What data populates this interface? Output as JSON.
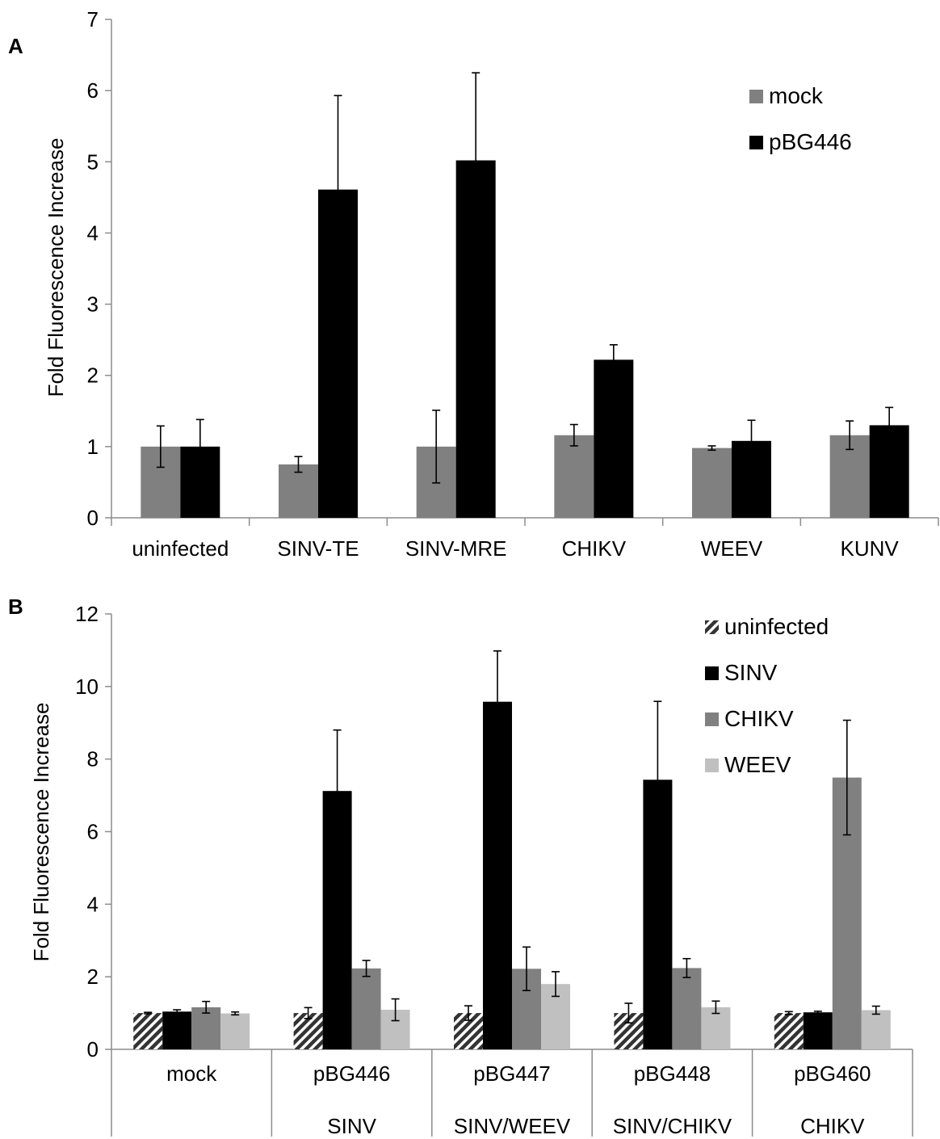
{
  "chart_data": [
    {
      "type": "bar",
      "panel_label": "A",
      "ylabel": "Fold Fluorescence Increase",
      "ylim": [
        0,
        7
      ],
      "yticks": [
        0,
        1,
        2,
        3,
        4,
        5,
        6,
        7
      ],
      "categories": [
        "uninfected",
        "SINV-TE",
        "SINV-MRE",
        "CHIKV",
        "WEEV",
        "KUNV"
      ],
      "legend_position": "top-right",
      "series": [
        {
          "name": "mock",
          "color": "#808080",
          "pattern": "solid",
          "values": [
            1.0,
            0.75,
            1.0,
            1.16,
            0.98,
            1.16
          ],
          "errors": [
            0.29,
            0.11,
            0.51,
            0.15,
            0.03,
            0.2
          ]
        },
        {
          "name": "pBG446",
          "color": "#000000",
          "pattern": "solid",
          "values": [
            1.0,
            4.61,
            5.02,
            2.22,
            1.08,
            1.3
          ],
          "errors": [
            0.38,
            1.32,
            1.23,
            0.21,
            0.29,
            0.25
          ]
        }
      ]
    },
    {
      "type": "bar",
      "panel_label": "B",
      "ylabel": "Fold Fluorescence Increase",
      "ylim": [
        0,
        12
      ],
      "yticks": [
        0,
        2,
        4,
        6,
        8,
        10,
        12
      ],
      "categories": [
        "mock",
        "pBG446",
        "pBG447",
        "pBG448",
        "pBG460"
      ],
      "subcategories": [
        "",
        "SINV",
        "SINV/WEEV",
        "SINV/CHIKV",
        "CHIKV"
      ],
      "legend_position": "top-right",
      "series": [
        {
          "name": "uninfected",
          "color": "#333333",
          "pattern": "hatched",
          "values": [
            1.0,
            1.0,
            1.0,
            1.0,
            1.0
          ],
          "errors": [
            0.02,
            0.15,
            0.2,
            0.27,
            0.04
          ]
        },
        {
          "name": "SINV",
          "color": "#000000",
          "pattern": "solid",
          "values": [
            1.04,
            7.12,
            9.58,
            7.43,
            1.02
          ],
          "errors": [
            0.05,
            1.68,
            1.4,
            2.16,
            0.03
          ]
        },
        {
          "name": "CHIKV",
          "color": "#808080",
          "pattern": "solid",
          "values": [
            1.16,
            2.23,
            2.22,
            2.24,
            7.49
          ],
          "errors": [
            0.16,
            0.22,
            0.6,
            0.26,
            1.58
          ]
        },
        {
          "name": "WEEV",
          "color": "#c0c0c0",
          "pattern": "solid",
          "values": [
            0.99,
            1.09,
            1.8,
            1.16,
            1.08
          ],
          "errors": [
            0.04,
            0.3,
            0.34,
            0.17,
            0.11
          ]
        }
      ]
    }
  ]
}
